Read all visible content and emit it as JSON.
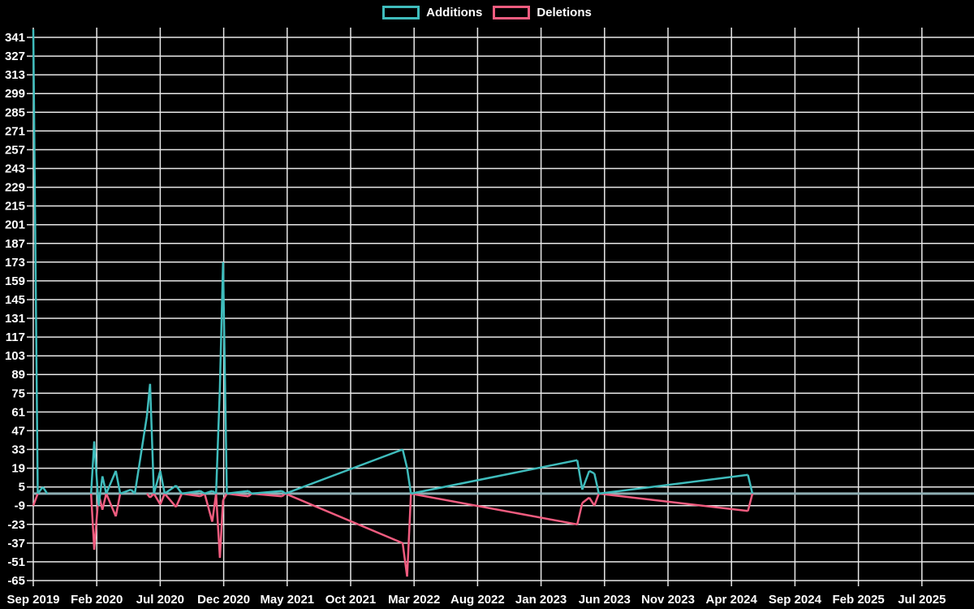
{
  "legend": {
    "additions_label": "Additions",
    "deletions_label": "Deletions"
  },
  "colors": {
    "additions": "#3fbcbc",
    "deletions": "#f05c7f",
    "baseline": "#8fafb4",
    "grid": "#e8e8e8",
    "text": "#ffffff",
    "background": "#000000"
  },
  "chart_data": {
    "type": "line",
    "title": "",
    "xlabel": "",
    "ylabel": "",
    "legend_position": "top-center",
    "grid": true,
    "x_tick_labels": [
      "Sep 2019",
      "Feb 2020",
      "Jul 2020",
      "Dec 2020",
      "May 2021",
      "Oct 2021",
      "Mar 2022",
      "Aug 2022",
      "Jan 2023",
      "Jun 2023",
      "Nov 2023",
      "Apr 2024",
      "Sep 2024",
      "Feb 2025",
      "Jul 2025"
    ],
    "x_tick_months": [
      0,
      5,
      10,
      15,
      20,
      25,
      30,
      35,
      40,
      45,
      50,
      55,
      60,
      65,
      70
    ],
    "y_tick_values": [
      341,
      327,
      313,
      299,
      285,
      271,
      257,
      243,
      229,
      215,
      201,
      187,
      173,
      159,
      145,
      131,
      117,
      103,
      89,
      75,
      61,
      47,
      33,
      19,
      5,
      -9,
      -23,
      -37,
      -51,
      -65
    ],
    "x_axis": {
      "unit": "months since Sep 2019",
      "range": [
        0,
        74.1
      ],
      "label_step_months": 5
    },
    "y_axis": {
      "tick_min": -65,
      "tick_max": 341,
      "tick_step": 14
    },
    "series_names": [
      "additions",
      "deletions"
    ],
    "points_format": [
      "months_since_sep_2019",
      "additions",
      "deletions"
    ],
    "points": [
      [
        0,
        347,
        -9
      ],
      [
        0.35,
        0,
        0
      ],
      [
        0.75,
        5,
        0
      ],
      [
        1.1,
        0,
        0
      ],
      [
        4.55,
        0,
        0
      ],
      [
        4.8,
        39,
        -42
      ],
      [
        5.15,
        -9,
        0
      ],
      [
        5.45,
        13,
        -12
      ],
      [
        5.75,
        0,
        0
      ],
      [
        6.5,
        17,
        -17
      ],
      [
        6.85,
        0,
        0
      ],
      [
        7.7,
        3,
        0
      ],
      [
        8.0,
        0,
        0
      ],
      [
        8.95,
        58,
        0
      ],
      [
        9.2,
        82,
        -3
      ],
      [
        9.5,
        0,
        0
      ],
      [
        10.0,
        17,
        -8
      ],
      [
        10.35,
        0,
        0
      ],
      [
        11.25,
        6,
        -10
      ],
      [
        11.7,
        0,
        0
      ],
      [
        13.15,
        2,
        -2
      ],
      [
        13.5,
        0,
        0
      ],
      [
        14.1,
        2,
        -21
      ],
      [
        14.4,
        0,
        0
      ],
      [
        14.7,
        79,
        -48
      ],
      [
        14.95,
        173,
        -5
      ],
      [
        15.25,
        0,
        0
      ],
      [
        16.95,
        2,
        -2
      ],
      [
        17.2,
        0,
        0
      ],
      [
        19.6,
        2,
        -2
      ],
      [
        19.85,
        0,
        0
      ],
      [
        29.1,
        33,
        -37
      ],
      [
        29.45,
        19,
        -62
      ],
      [
        29.75,
        0,
        0
      ],
      [
        42.85,
        25,
        -23
      ],
      [
        43.25,
        3,
        -7
      ],
      [
        43.8,
        17,
        -3
      ],
      [
        44.2,
        15,
        -9
      ],
      [
        44.55,
        0,
        0
      ],
      [
        56.3,
        14,
        -13
      ],
      [
        56.65,
        0,
        0
      ],
      [
        74.1,
        0,
        0
      ]
    ]
  }
}
